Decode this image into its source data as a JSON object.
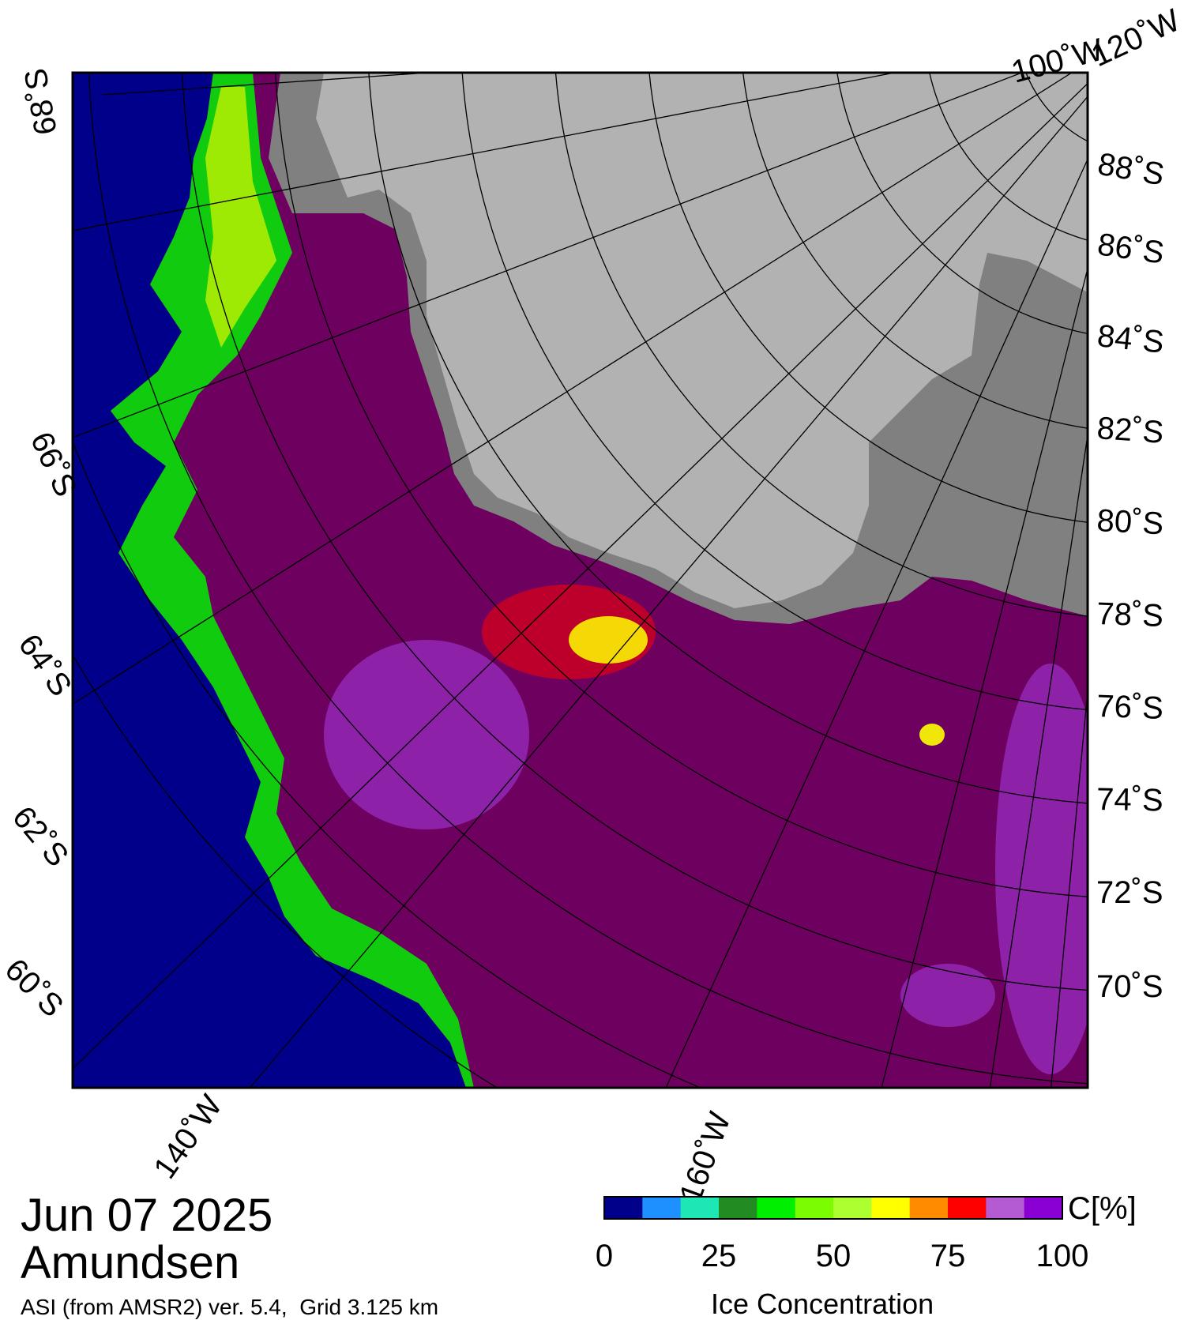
{
  "date": "Jun 07 2025",
  "region": "Amundsen",
  "product": "ASI (from AMSR2) ver. 5.4,  Grid 3.125 km",
  "colorbar": {
    "title": "Ice Concentration",
    "unit": "C[%]",
    "ticks": [
      "0",
      "25",
      "50",
      "75",
      "100"
    ],
    "colors": [
      "#00008b",
      "#1e90ff",
      "#1ee6b4",
      "#228b22",
      "#00ee00",
      "#7cfc00",
      "#adff2f",
      "#ffff00",
      "#ff8c00",
      "#ff0000",
      "#b45ad2",
      "#8a00d4"
    ]
  },
  "right_lat_labels": [
    "88˚S",
    "86˚S",
    "84˚S",
    "82˚S",
    "80˚S",
    "78˚S",
    "76˚S",
    "74˚S",
    "72˚S",
    "70˚S"
  ],
  "left_lat_labels": [
    "68˚S",
    "66˚S",
    "64˚S",
    "62˚S",
    "60˚S"
  ],
  "bottom_lon_labels": [
    "140˚W",
    "160˚W"
  ],
  "top_lon_labels": [
    "100˚W",
    "120˚W"
  ],
  "colors": {
    "open_water": "#00008b",
    "land": "#b2b2b2",
    "ice_shelf": "#808080",
    "full_ice": "#6e005f"
  }
}
